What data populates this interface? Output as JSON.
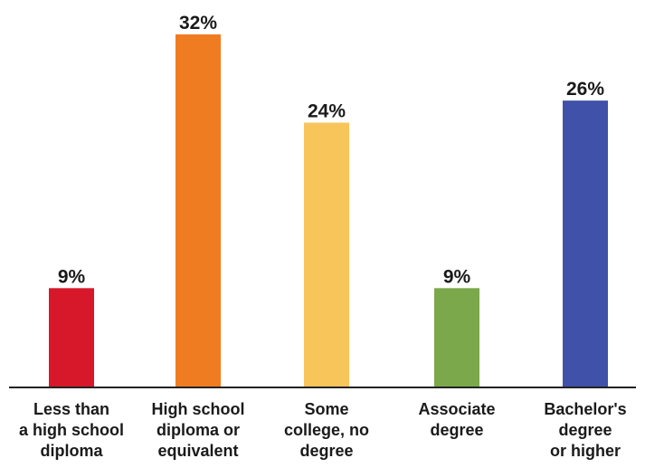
{
  "chart_data": {
    "type": "bar",
    "title": "",
    "xlabel": "",
    "ylabel": "",
    "ylim": [
      0,
      32
    ],
    "grid": false,
    "legend": "none",
    "categories": [
      [
        "Less than",
        "a high school",
        "diploma"
      ],
      [
        "High school",
        "diploma or",
        "equivalent"
      ],
      [
        "Some",
        "college, no",
        "degree"
      ],
      [
        "Associate",
        "degree"
      ],
      [
        "Bachelor's",
        "degree",
        "or higher"
      ]
    ],
    "values": [
      9,
      32,
      24,
      9,
      26
    ],
    "value_labels": [
      "9%",
      "32%",
      "24%",
      "9%",
      "26%"
    ],
    "colors": [
      "#d7182a",
      "#f07c22",
      "#f8c55b",
      "#7aa84a",
      "#3f51a8"
    ]
  }
}
